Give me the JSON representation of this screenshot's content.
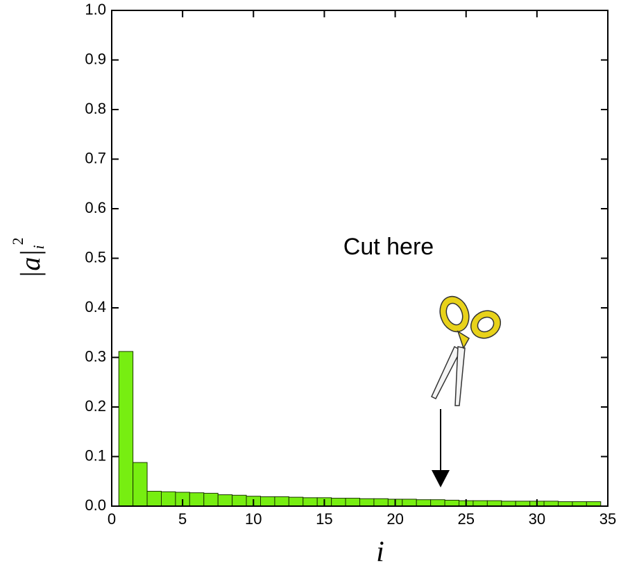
{
  "chart_data": {
    "type": "bar",
    "x": [
      1,
      2,
      3,
      4,
      5,
      6,
      7,
      8,
      9,
      10,
      11,
      12,
      13,
      14,
      15,
      16,
      17,
      18,
      19,
      20,
      21,
      22,
      23,
      24,
      25,
      26,
      27,
      28,
      29,
      30,
      31,
      32,
      33,
      34
    ],
    "values": [
      0.312,
      0.088,
      0.03,
      0.029,
      0.028,
      0.027,
      0.026,
      0.023,
      0.022,
      0.02,
      0.019,
      0.019,
      0.018,
      0.017,
      0.017,
      0.016,
      0.016,
      0.015,
      0.015,
      0.014,
      0.014,
      0.013,
      0.013,
      0.012,
      0.011,
      0.011,
      0.011,
      0.01,
      0.01,
      0.01,
      0.01,
      0.009,
      0.009,
      0.009
    ],
    "color": "#77ee11",
    "xlim": [
      0,
      35
    ],
    "xticks": [
      0,
      5,
      10,
      15,
      20,
      25,
      30,
      35
    ],
    "ylim": [
      0,
      1
    ],
    "yticks": [
      {
        "value": 0,
        "label": "0.0"
      },
      {
        "value": 0.1,
        "label": "0.1"
      },
      {
        "value": 0.2,
        "label": "0.2"
      },
      {
        "value": 0.3,
        "label": "0.3"
      },
      {
        "value": 0.4,
        "label": "0.4"
      },
      {
        "value": 0.5,
        "label": "0.5"
      },
      {
        "value": 0.6,
        "label": "0.6"
      },
      {
        "value": 0.7,
        "label": "0.7"
      },
      {
        "value": 0.8,
        "label": "0.8"
      },
      {
        "value": 0.9,
        "label": "0.9"
      },
      {
        "value": 1,
        "label": "1.0"
      }
    ],
    "xlabel": "i",
    "ylabel": {
      "text": "|a|",
      "subscript": "i",
      "superscript": "2"
    },
    "annotation": "Cut here"
  }
}
